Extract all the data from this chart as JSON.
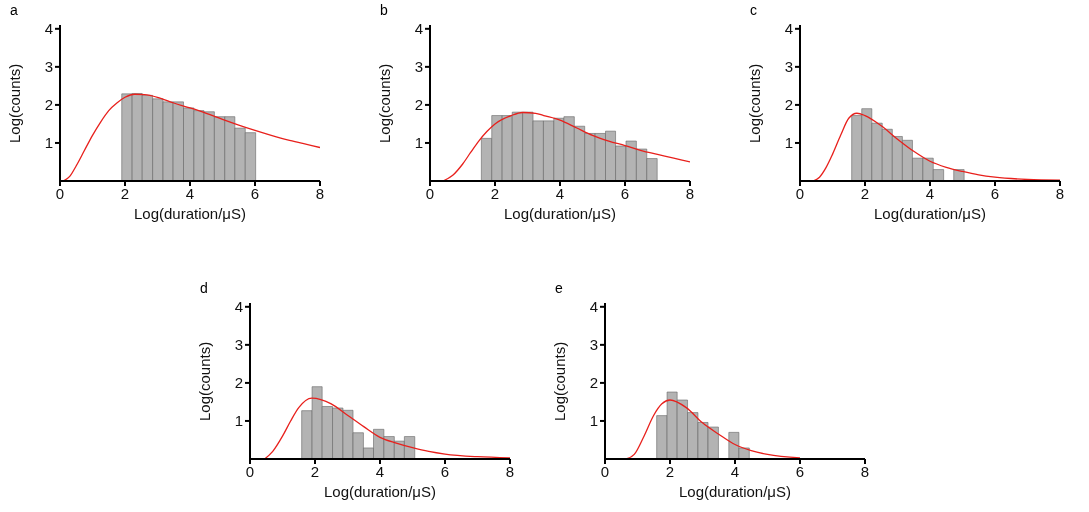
{
  "chart_data": [
    {
      "type": "histogram",
      "title": "a",
      "xlabel": "Log(duration/μS)",
      "ylabel": "Log(counts)",
      "xlim": [
        0,
        8
      ],
      "xticks": [
        0,
        2,
        4,
        6,
        8
      ],
      "ylim": [
        0,
        4.1
      ],
      "yticks": [
        1,
        2,
        3,
        4
      ],
      "series": [
        {
          "type": "histogram",
          "color": "#b3b3b3",
          "bins": [
            1.9,
            2.22,
            2.53,
            2.85,
            3.17,
            3.48,
            3.8,
            4.12,
            4.43,
            4.75,
            5.07,
            5.38,
            5.7,
            6.02
          ],
          "values": [
            2.29,
            2.3,
            2.25,
            2.16,
            2.08,
            2.08,
            1.92,
            1.85,
            1.82,
            1.69,
            1.69,
            1.39,
            1.27
          ]
        },
        {
          "type": "line",
          "color": "#e8201c",
          "x": [
            0.1,
            0.3,
            0.5,
            0.75,
            1,
            1.25,
            1.5,
            1.75,
            2,
            2.3,
            2.6,
            3,
            3.5,
            4,
            4.5,
            5,
            5.5,
            6,
            6.5,
            7,
            7.5,
            8
          ],
          "values": [
            0,
            0.12,
            0.4,
            0.8,
            1.2,
            1.55,
            1.85,
            2.05,
            2.2,
            2.28,
            2.27,
            2.2,
            2.05,
            1.92,
            1.78,
            1.62,
            1.47,
            1.33,
            1.2,
            1.08,
            0.98,
            0.88
          ]
        }
      ]
    },
    {
      "type": "histogram",
      "title": "b",
      "xlabel": "Log(duration/μS)",
      "ylabel": "Log(counts)",
      "xlim": [
        0,
        8
      ],
      "xticks": [
        0,
        2,
        4,
        6,
        8
      ],
      "ylim": [
        0,
        4.1
      ],
      "yticks": [
        1,
        2,
        3,
        4
      ],
      "series": [
        {
          "type": "histogram",
          "color": "#b3b3b3",
          "bins": [
            1.58,
            1.9,
            2.22,
            2.53,
            2.85,
            3.17,
            3.49,
            3.81,
            4.12,
            4.44,
            4.76,
            5.08,
            5.4,
            5.71,
            6.03,
            6.35,
            6.67,
            6.99
          ],
          "values": [
            1.12,
            1.72,
            1.72,
            1.81,
            1.81,
            1.58,
            1.58,
            1.65,
            1.69,
            1.44,
            1.25,
            1.25,
            1.31,
            0.92,
            1.05,
            0.84,
            0.59
          ]
        },
        {
          "type": "line",
          "color": "#e8201c",
          "x": [
            0.4,
            0.7,
            1,
            1.25,
            1.5,
            1.75,
            2,
            2.5,
            2.85,
            3.25,
            3.5,
            4,
            4.5,
            5,
            5.5,
            6,
            6.5,
            7,
            7.5,
            8
          ],
          "values": [
            0,
            0.15,
            0.44,
            0.75,
            1.05,
            1.3,
            1.5,
            1.72,
            1.8,
            1.78,
            1.72,
            1.6,
            1.4,
            1.2,
            1.05,
            0.93,
            0.8,
            0.7,
            0.6,
            0.5
          ]
        }
      ]
    },
    {
      "type": "histogram",
      "title": "c",
      "xlabel": "Log(duration/μS)",
      "ylabel": "Log(counts)",
      "xlim": [
        0,
        8
      ],
      "xticks": [
        0,
        2,
        4,
        6,
        8
      ],
      "ylim": [
        0,
        4.1
      ],
      "yticks": [
        1,
        2,
        3,
        4
      ],
      "series": [
        {
          "type": "histogram",
          "color": "#b3b3b3",
          "bins": [
            1.59,
            1.9,
            2.21,
            2.53,
            2.84,
            3.15,
            3.46,
            3.78,
            4.1,
            4.42,
            4.73,
            5.05
          ],
          "values": [
            1.72,
            1.9,
            1.52,
            1.36,
            1.17,
            1.07,
            0.6,
            0.6,
            0.3,
            0,
            0.3
          ]
        },
        {
          "type": "line",
          "color": "#e8201c",
          "x": [
            0.4,
            0.6,
            0.8,
            1,
            1.25,
            1.5,
            1.75,
            2,
            2.5,
            3,
            3.5,
            4,
            4.5,
            5,
            5.5,
            6,
            7,
            8
          ],
          "values": [
            0,
            0.1,
            0.35,
            0.7,
            1.2,
            1.65,
            1.78,
            1.72,
            1.45,
            1.1,
            0.78,
            0.52,
            0.36,
            0.25,
            0.16,
            0.1,
            0.04,
            0.02
          ]
        }
      ]
    },
    {
      "type": "histogram",
      "title": "d",
      "xlabel": "Log(duration/μS)",
      "ylabel": "Log(counts)",
      "xlim": [
        0,
        8
      ],
      "xticks": [
        0,
        2,
        4,
        6,
        8
      ],
      "ylim": [
        0,
        4.1
      ],
      "yticks": [
        1,
        2,
        3,
        4
      ],
      "series": [
        {
          "type": "histogram",
          "color": "#b3b3b3",
          "bins": [
            1.59,
            1.91,
            2.22,
            2.54,
            2.86,
            3.17,
            3.49,
            3.8,
            4.12,
            4.44,
            4.75,
            5.07
          ],
          "values": [
            1.27,
            1.9,
            1.38,
            1.34,
            1.28,
            0.69,
            0.29,
            0.78,
            0.59,
            0.47,
            0.59
          ]
        },
        {
          "type": "line",
          "color": "#e8201c",
          "x": [
            0.45,
            0.7,
            1,
            1.25,
            1.5,
            1.9,
            2.5,
            3,
            3.5,
            4,
            4.5,
            5,
            5.5,
            6,
            7,
            8
          ],
          "values": [
            0,
            0.2,
            0.6,
            1,
            1.35,
            1.6,
            1.45,
            1.15,
            0.85,
            0.57,
            0.42,
            0.3,
            0.2,
            0.13,
            0.06,
            0.03
          ]
        }
      ]
    },
    {
      "type": "histogram",
      "title": "e",
      "xlabel": "Log(duration/μS)",
      "ylabel": "Log(counts)",
      "xlim": [
        0,
        8
      ],
      "xticks": [
        0,
        2,
        4,
        6,
        8
      ],
      "ylim": [
        0,
        4.1
      ],
      "yticks": [
        1,
        2,
        3,
        4
      ],
      "series": [
        {
          "type": "histogram",
          "color": "#b3b3b3",
          "bins": [
            1.59,
            1.91,
            2.22,
            2.54,
            2.86,
            3.17,
            3.49,
            3.81,
            4.12,
            4.44
          ],
          "values": [
            1.14,
            1.76,
            1.55,
            1.22,
            0.96,
            0.84,
            0,
            0.7,
            0.29
          ]
        },
        {
          "type": "line",
          "color": "#e8201c",
          "x": [
            0.65,
            0.9,
            1.2,
            1.5,
            1.75,
            2,
            2.5,
            3,
            3.5,
            4,
            4.5,
            5,
            6
          ],
          "values": [
            0,
            0.12,
            0.6,
            1.15,
            1.45,
            1.55,
            1.35,
            0.95,
            0.65,
            0.38,
            0.22,
            0.12,
            0.03
          ]
        }
      ]
    }
  ]
}
